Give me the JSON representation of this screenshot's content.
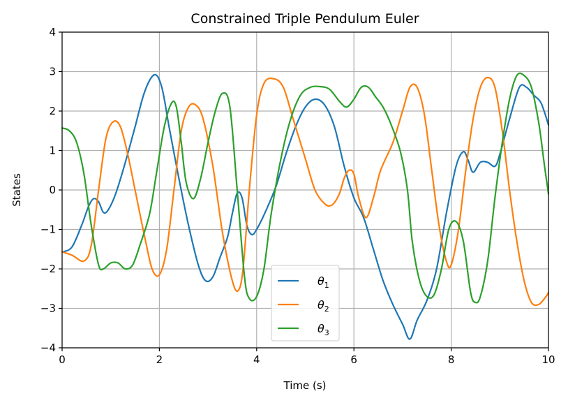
{
  "chart_data": {
    "type": "line",
    "title": "Constrained Triple Pendulum Euler",
    "xlabel": "Time (s)",
    "ylabel": "States",
    "xlim": [
      0,
      10
    ],
    "ylim": [
      -4,
      4
    ],
    "xticks": [
      0,
      2,
      4,
      6,
      8,
      10
    ],
    "yticks": [
      -4,
      -3,
      -2,
      -1,
      0,
      1,
      2,
      3,
      4
    ],
    "grid": true,
    "legend_position": "bottom-center",
    "series": [
      {
        "name": "θ",
        "subscript": "1",
        "color": "#1f77b4",
        "points": [
          [
            0,
            -1.57
          ],
          [
            0.2,
            -1.45
          ],
          [
            0.4,
            -0.9
          ],
          [
            0.55,
            -0.4
          ],
          [
            0.65,
            -0.22
          ],
          [
            0.75,
            -0.3
          ],
          [
            0.85,
            -0.57
          ],
          [
            0.95,
            -0.5
          ],
          [
            1.1,
            -0.1
          ],
          [
            1.3,
            0.7
          ],
          [
            1.5,
            1.6
          ],
          [
            1.7,
            2.5
          ],
          [
            1.9,
            2.92
          ],
          [
            2.05,
            2.6
          ],
          [
            2.2,
            1.6
          ],
          [
            2.4,
            0.3
          ],
          [
            2.6,
            -0.9
          ],
          [
            2.8,
            -1.9
          ],
          [
            2.95,
            -2.3
          ],
          [
            3.1,
            -2.2
          ],
          [
            3.25,
            -1.7
          ],
          [
            3.4,
            -1.2
          ],
          [
            3.5,
            -0.6
          ],
          [
            3.6,
            -0.08
          ],
          [
            3.7,
            -0.2
          ],
          [
            3.8,
            -0.9
          ],
          [
            3.9,
            -1.13
          ],
          [
            4.0,
            -1.0
          ],
          [
            4.2,
            -0.5
          ],
          [
            4.4,
            0.1
          ],
          [
            4.6,
            0.9
          ],
          [
            4.8,
            1.6
          ],
          [
            5.0,
            2.1
          ],
          [
            5.2,
            2.3
          ],
          [
            5.4,
            2.15
          ],
          [
            5.6,
            1.6
          ],
          [
            5.8,
            0.6
          ],
          [
            6.0,
            -0.2
          ],
          [
            6.2,
            -0.7
          ],
          [
            6.4,
            -1.5
          ],
          [
            6.6,
            -2.3
          ],
          [
            6.8,
            -2.9
          ],
          [
            7.0,
            -3.4
          ],
          [
            7.15,
            -3.78
          ],
          [
            7.3,
            -3.3
          ],
          [
            7.5,
            -2.8
          ],
          [
            7.7,
            -2.0
          ],
          [
            7.9,
            -0.6
          ],
          [
            8.1,
            0.6
          ],
          [
            8.25,
            0.97
          ],
          [
            8.35,
            0.75
          ],
          [
            8.45,
            0.45
          ],
          [
            8.6,
            0.7
          ],
          [
            8.75,
            0.7
          ],
          [
            8.9,
            0.6
          ],
          [
            9.0,
            0.9
          ],
          [
            9.2,
            1.8
          ],
          [
            9.4,
            2.6
          ],
          [
            9.55,
            2.6
          ],
          [
            9.7,
            2.4
          ],
          [
            9.85,
            2.2
          ],
          [
            10.0,
            1.65
          ]
        ]
      },
      {
        "name": "θ",
        "subscript": "2",
        "color": "#ff7f0e",
        "points": [
          [
            0,
            -1.57
          ],
          [
            0.2,
            -1.65
          ],
          [
            0.45,
            -1.8
          ],
          [
            0.6,
            -1.4
          ],
          [
            0.75,
            0.0
          ],
          [
            0.9,
            1.3
          ],
          [
            1.05,
            1.73
          ],
          [
            1.2,
            1.6
          ],
          [
            1.35,
            0.9
          ],
          [
            1.5,
            0.0
          ],
          [
            1.7,
            -1.2
          ],
          [
            1.85,
            -2.0
          ],
          [
            2.0,
            -2.15
          ],
          [
            2.15,
            -1.5
          ],
          [
            2.3,
            0.0
          ],
          [
            2.45,
            1.5
          ],
          [
            2.6,
            2.1
          ],
          [
            2.75,
            2.15
          ],
          [
            2.9,
            1.8
          ],
          [
            3.1,
            0.6
          ],
          [
            3.3,
            -1.1
          ],
          [
            3.5,
            -2.3
          ],
          [
            3.62,
            -2.55
          ],
          [
            3.72,
            -2.0
          ],
          [
            3.85,
            0.0
          ],
          [
            4.0,
            1.9
          ],
          [
            4.15,
            2.7
          ],
          [
            4.35,
            2.82
          ],
          [
            4.55,
            2.6
          ],
          [
            4.75,
            1.8
          ],
          [
            5.0,
            0.8
          ],
          [
            5.2,
            0.0
          ],
          [
            5.4,
            -0.35
          ],
          [
            5.55,
            -0.38
          ],
          [
            5.7,
            -0.1
          ],
          [
            5.8,
            0.3
          ],
          [
            5.9,
            0.5
          ],
          [
            6.0,
            0.4
          ],
          [
            6.1,
            -0.2
          ],
          [
            6.25,
            -0.7
          ],
          [
            6.4,
            -0.2
          ],
          [
            6.55,
            0.5
          ],
          [
            6.8,
            1.2
          ],
          [
            7.0,
            2.0
          ],
          [
            7.15,
            2.6
          ],
          [
            7.3,
            2.6
          ],
          [
            7.45,
            1.9
          ],
          [
            7.6,
            0.5
          ],
          [
            7.75,
            -0.9
          ],
          [
            7.9,
            -1.8
          ],
          [
            8.0,
            -1.9
          ],
          [
            8.15,
            -1.0
          ],
          [
            8.3,
            0.5
          ],
          [
            8.45,
            1.8
          ],
          [
            8.6,
            2.6
          ],
          [
            8.75,
            2.85
          ],
          [
            8.9,
            2.6
          ],
          [
            9.05,
            1.5
          ],
          [
            9.2,
            0.0
          ],
          [
            9.35,
            -1.3
          ],
          [
            9.5,
            -2.3
          ],
          [
            9.65,
            -2.85
          ],
          [
            9.8,
            -2.9
          ],
          [
            9.95,
            -2.7
          ],
          [
            10.0,
            -2.6
          ]
        ]
      },
      {
        "name": "θ",
        "subscript": "3",
        "color": "#2ca02c",
        "points": [
          [
            0,
            1.57
          ],
          [
            0.15,
            1.5
          ],
          [
            0.3,
            1.2
          ],
          [
            0.45,
            0.4
          ],
          [
            0.6,
            -0.9
          ],
          [
            0.75,
            -1.9
          ],
          [
            0.85,
            -2.0
          ],
          [
            1.0,
            -1.85
          ],
          [
            1.15,
            -1.85
          ],
          [
            1.3,
            -2.0
          ],
          [
            1.45,
            -1.9
          ],
          [
            1.6,
            -1.4
          ],
          [
            1.8,
            -0.6
          ],
          [
            1.95,
            0.5
          ],
          [
            2.1,
            1.6
          ],
          [
            2.25,
            2.2
          ],
          [
            2.35,
            2.1
          ],
          [
            2.45,
            1.2
          ],
          [
            2.55,
            0.2
          ],
          [
            2.7,
            -0.22
          ],
          [
            2.85,
            0.3
          ],
          [
            3.0,
            1.2
          ],
          [
            3.15,
            2.0
          ],
          [
            3.3,
            2.45
          ],
          [
            3.45,
            2.1
          ],
          [
            3.6,
            0.0
          ],
          [
            3.75,
            -2.2
          ],
          [
            3.85,
            -2.75
          ],
          [
            4.0,
            -2.7
          ],
          [
            4.15,
            -2.0
          ],
          [
            4.3,
            -0.6
          ],
          [
            4.5,
            0.8
          ],
          [
            4.7,
            1.8
          ],
          [
            4.9,
            2.4
          ],
          [
            5.1,
            2.6
          ],
          [
            5.3,
            2.62
          ],
          [
            5.5,
            2.55
          ],
          [
            5.7,
            2.25
          ],
          [
            5.85,
            2.1
          ],
          [
            6.0,
            2.3
          ],
          [
            6.15,
            2.6
          ],
          [
            6.3,
            2.6
          ],
          [
            6.45,
            2.35
          ],
          [
            6.6,
            2.1
          ],
          [
            6.75,
            1.7
          ],
          [
            6.95,
            1.0
          ],
          [
            7.1,
            0.0
          ],
          [
            7.2,
            -1.3
          ],
          [
            7.35,
            -2.3
          ],
          [
            7.5,
            -2.7
          ],
          [
            7.65,
            -2.65
          ],
          [
            7.8,
            -2.0
          ],
          [
            7.95,
            -1.0
          ],
          [
            8.1,
            -0.8
          ],
          [
            8.25,
            -1.3
          ],
          [
            8.4,
            -2.6
          ],
          [
            8.5,
            -2.85
          ],
          [
            8.6,
            -2.7
          ],
          [
            8.75,
            -1.8
          ],
          [
            8.9,
            -0.2
          ],
          [
            9.05,
            1.2
          ],
          [
            9.2,
            2.3
          ],
          [
            9.35,
            2.9
          ],
          [
            9.5,
            2.9
          ],
          [
            9.65,
            2.6
          ],
          [
            9.8,
            1.7
          ],
          [
            9.92,
            0.6
          ],
          [
            10.0,
            -0.1
          ]
        ]
      }
    ]
  }
}
